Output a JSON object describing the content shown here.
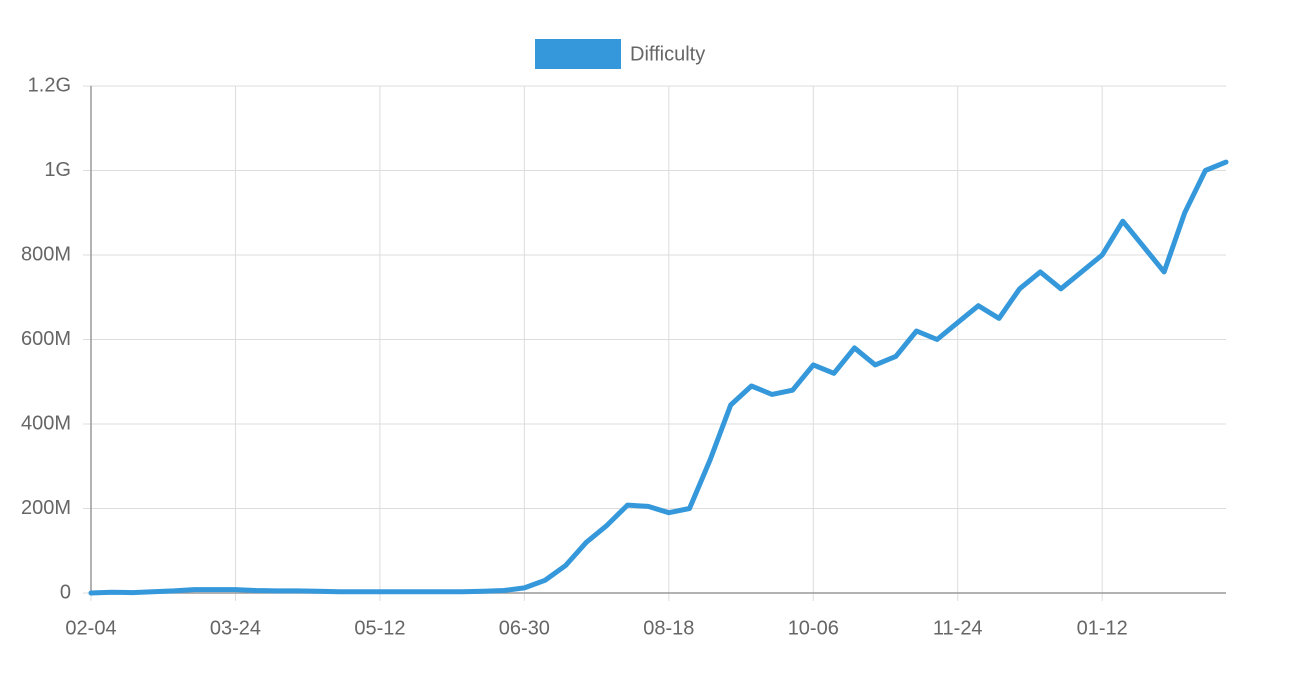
{
  "chart_data": {
    "type": "line",
    "categories": [
      "02-04",
      null,
      null,
      null,
      null,
      null,
      null,
      "03-24",
      null,
      null,
      null,
      null,
      null,
      null,
      "05-12",
      null,
      null,
      null,
      null,
      null,
      null,
      "06-30",
      null,
      null,
      null,
      null,
      null,
      null,
      "08-18",
      null,
      null,
      null,
      null,
      null,
      null,
      "10-06",
      null,
      null,
      null,
      null,
      null,
      null,
      "11-24",
      null,
      null,
      null,
      null,
      null,
      null,
      "01-12",
      null,
      null,
      null,
      null,
      null,
      null
    ],
    "series": [
      {
        "name": "Difficulty",
        "color": "#3498db",
        "values": [
          0,
          2000000,
          1000000,
          3000000,
          5000000,
          8000000,
          8000000,
          8000000,
          6000000,
          5000000,
          5000000,
          4000000,
          3000000,
          3000000,
          3000000,
          3000000,
          3000000,
          3000000,
          3000000,
          4000000,
          6000000,
          12000000,
          30000000,
          65000000,
          120000000,
          160000000,
          208000000,
          205000000,
          190000000,
          200000000,
          315000000,
          445000000,
          490000000,
          470000000,
          480000000,
          540000000,
          520000000,
          580000000,
          540000000,
          560000000,
          620000000,
          600000000,
          640000000,
          680000000,
          650000000,
          720000000,
          760000000,
          720000000,
          760000000,
          800000000,
          880000000,
          820000000,
          760000000,
          900000000,
          1000000000,
          1020000000
        ]
      }
    ],
    "ylim": [
      0,
      1200000000
    ],
    "yticks": [
      0,
      {
        "value": 200000000,
        "label": "200M"
      },
      {
        "value": 400000000,
        "label": "400M"
      },
      {
        "value": 600000000,
        "label": "600M"
      },
      {
        "value": 800000000,
        "label": "800M"
      },
      {
        "value": 1000000000,
        "label": "1G"
      },
      {
        "value": 1200000000,
        "label": "1.2G"
      }
    ],
    "grid": true,
    "legend": "top"
  }
}
